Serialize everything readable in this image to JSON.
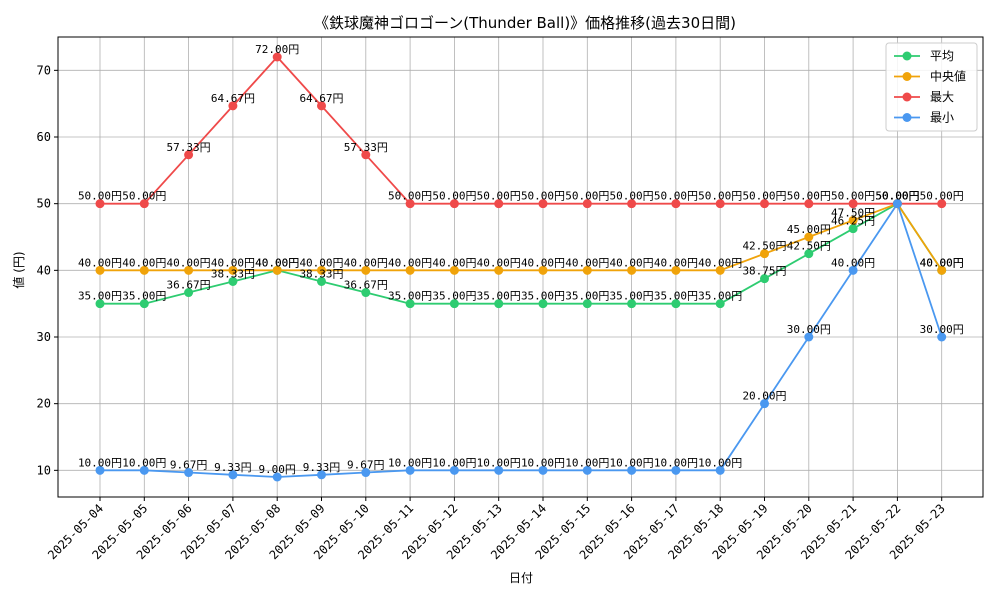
{
  "chart_data": {
    "type": "line",
    "title": "《鉄球魔神ゴロゴーン(Thunder Ball)》価格推移(過去30日間)",
    "xlabel": "日付",
    "ylabel": "値 (円)",
    "ylim": [
      6,
      75
    ],
    "yticks": [
      10,
      20,
      30,
      40,
      50,
      60,
      70
    ],
    "grid": true,
    "legend_position": "top-right",
    "label_suffix": "円",
    "categories": [
      "2025-05-04",
      "2025-05-05",
      "2025-05-06",
      "2025-05-07",
      "2025-05-08",
      "2025-05-09",
      "2025-05-10",
      "2025-05-11",
      "2025-05-12",
      "2025-05-13",
      "2025-05-14",
      "2025-05-15",
      "2025-05-16",
      "2025-05-17",
      "2025-05-18",
      "2025-05-19",
      "2025-05-20",
      "2025-05-21",
      "2025-05-22",
      "2025-05-23"
    ],
    "series": [
      {
        "name": "平均",
        "color": "#2ecc71",
        "values": [
          35.0,
          35.0,
          36.67,
          38.33,
          40.0,
          38.33,
          36.67,
          35.0,
          35.0,
          35.0,
          35.0,
          35.0,
          35.0,
          35.0,
          35.0,
          38.75,
          42.5,
          46.25,
          50.0,
          40.0
        ]
      },
      {
        "name": "中央値",
        "color": "#f0a30a",
        "values": [
          40.0,
          40.0,
          40.0,
          40.0,
          40.0,
          40.0,
          40.0,
          40.0,
          40.0,
          40.0,
          40.0,
          40.0,
          40.0,
          40.0,
          40.0,
          42.5,
          45.0,
          47.5,
          50.0,
          40.0
        ]
      },
      {
        "name": "最大",
        "color": "#ef4a4a",
        "values": [
          50.0,
          50.0,
          57.33,
          64.67,
          72.0,
          64.67,
          57.33,
          50.0,
          50.0,
          50.0,
          50.0,
          50.0,
          50.0,
          50.0,
          50.0,
          50.0,
          50.0,
          50.0,
          50.0,
          50.0
        ]
      },
      {
        "name": "最小",
        "color": "#4a98f0",
        "values": [
          10.0,
          10.0,
          9.67,
          9.33,
          9.0,
          9.33,
          9.67,
          10.0,
          10.0,
          10.0,
          10.0,
          10.0,
          10.0,
          10.0,
          10.0,
          20.0,
          30.0,
          40.0,
          50.0,
          30.0
        ]
      }
    ]
  }
}
